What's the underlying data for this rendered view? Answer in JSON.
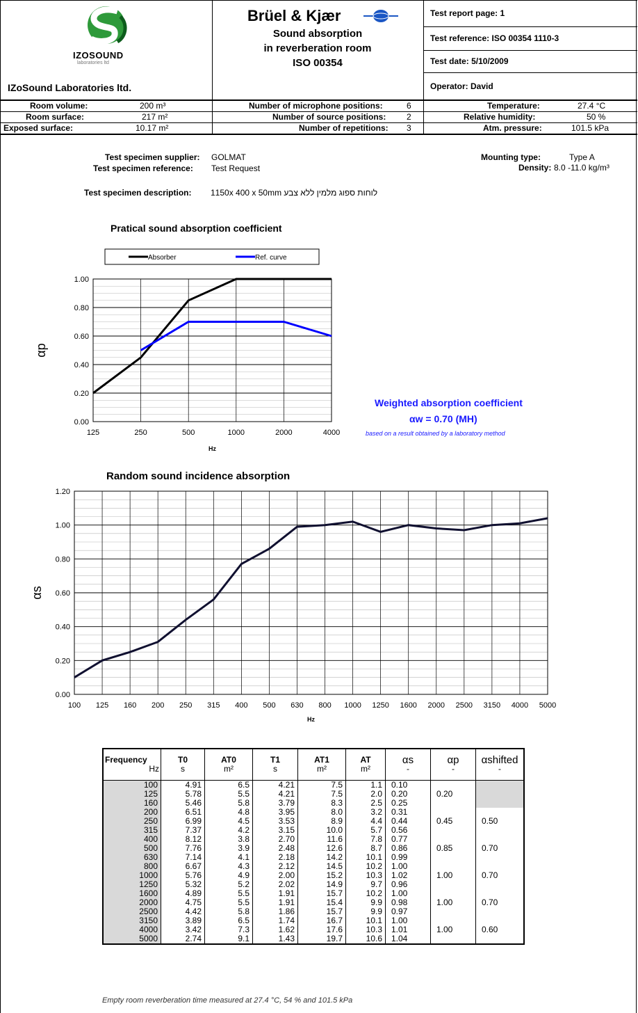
{
  "header": {
    "lab_logo_line1": "IZOSOUND",
    "lab_logo_line2": "laboratories ltd",
    "lab_name": "IZoSound Laboratories ltd.",
    "brand": "Brüel & Kjær",
    "title_line1": "Sound absorption",
    "title_line2": "in reverberation room",
    "title_line3": "ISO 00354",
    "report_page": "Test report page: 1",
    "test_reference": "Test reference: ISO 00354 1110-3",
    "test_date": "Test date: 5/10/2009",
    "operator": "Operator: David"
  },
  "room": {
    "volume_label": "Room volume:",
    "volume_value": "200 m³",
    "surface_label": "Room surface:",
    "surface_value": "217 m²",
    "exposed_label": "Exposed surface:",
    "exposed_value": "10.17 m²",
    "mic_label": "Number of microphone positions:",
    "mic_value": "6",
    "src_label": "Number of source positions:",
    "src_value": "2",
    "rep_label": "Number of repetitions:",
    "rep_value": "3",
    "temp_label": "Temperature:",
    "temp_value": "27.4 °C",
    "hum_label": "Relative humidity:",
    "hum_value": "50 %",
    "press_label": "Atm. pressure:",
    "press_value": "101.5 kPa"
  },
  "specimen": {
    "supplier_label": "Test specimen supplier:",
    "supplier_value": "GOLMAT",
    "reference_label": "Test specimen reference:",
    "reference_value": "Test Request",
    "mounting_label": "Mounting type:",
    "mounting_value": "Type A",
    "density_label": "Density:",
    "density_value": "8.0 -11.0   kg/m³",
    "description_label": "Test specimen description:",
    "description_value": "לוחות ספוג מלמין ללא צבע 1150x 400 x 50mm"
  },
  "weighted": {
    "title": "Weighted absorption coefficient",
    "value_line": "αw  =   0.70   (MH)",
    "note": "based on a result obtained by a laboratory method"
  },
  "chart_data": [
    {
      "type": "line",
      "title": "Pratical sound absorption coefficient",
      "xlabel": "Hz",
      "ylabel": "αp",
      "categories": [
        "125",
        "250",
        "500",
        "1000",
        "2000",
        "4000"
      ],
      "ylim": [
        0,
        1.0
      ],
      "yticks": [
        "0.00",
        "0.20",
        "0.40",
        "0.60",
        "0.80",
        "1.00"
      ],
      "grid": true,
      "legend_position": "top",
      "series": [
        {
          "name": "Absorber",
          "color": "#000000",
          "values": [
            0.2,
            0.45,
            0.85,
            1.0,
            1.0,
            1.0
          ]
        },
        {
          "name": "Ref. curve",
          "color": "#0000ff",
          "values": [
            null,
            0.5,
            0.7,
            0.7,
            0.7,
            0.6
          ]
        }
      ]
    },
    {
      "type": "line",
      "title": "Random sound incidence absorption",
      "xlabel": "Hz",
      "ylabel": "αs",
      "categories": [
        "100",
        "125",
        "160",
        "200",
        "250",
        "315",
        "400",
        "500",
        "630",
        "800",
        "1000",
        "1250",
        "1600",
        "2000",
        "2500",
        "3150",
        "4000",
        "5000"
      ],
      "ylim": [
        0,
        1.2
      ],
      "yticks": [
        "0.00",
        "0.20",
        "0.40",
        "0.60",
        "0.80",
        "1.00",
        "1.20"
      ],
      "grid": true,
      "series": [
        {
          "color": "#101030",
          "values": [
            0.1,
            0.2,
            0.25,
            0.31,
            0.44,
            0.56,
            0.77,
            0.86,
            0.99,
            1.0,
            1.02,
            0.96,
            1.0,
            0.98,
            0.97,
            1.0,
            1.01,
            1.04
          ]
        }
      ]
    }
  ],
  "table": {
    "headers": [
      {
        "top": "Frequency",
        "unit": "Hz"
      },
      {
        "top": "T0",
        "unit": "s"
      },
      {
        "top": "AT0",
        "unit": "m²"
      },
      {
        "top": "T1",
        "unit": "s"
      },
      {
        "top": "AT1",
        "unit": "m²"
      },
      {
        "top": "AT",
        "unit": "m²"
      },
      {
        "top": "αs",
        "unit": "-"
      },
      {
        "top": "αp",
        "unit": "-"
      },
      {
        "top": "αshifted",
        "unit": "-"
      }
    ],
    "rows": [
      [
        "100",
        "4.91",
        "6.5",
        "4.21",
        "7.5",
        "1.1",
        "0.10",
        "",
        ""
      ],
      [
        "125",
        "5.78",
        "5.5",
        "4.21",
        "7.5",
        "2.0",
        "0.20",
        "0.20",
        ""
      ],
      [
        "160",
        "5.46",
        "5.8",
        "3.79",
        "8.3",
        "2.5",
        "0.25",
        "",
        ""
      ],
      [
        "200",
        "6.51",
        "4.8",
        "3.95",
        "8.0",
        "3.2",
        "0.31",
        "",
        ""
      ],
      [
        "250",
        "6.99",
        "4.5",
        "3.53",
        "8.9",
        "4.4",
        "0.44",
        "0.45",
        "0.50"
      ],
      [
        "315",
        "7.37",
        "4.2",
        "3.15",
        "10.0",
        "5.7",
        "0.56",
        "",
        ""
      ],
      [
        "400",
        "8.12",
        "3.8",
        "2.70",
        "11.6",
        "7.8",
        "0.77",
        "",
        ""
      ],
      [
        "500",
        "7.76",
        "3.9",
        "2.48",
        "12.6",
        "8.7",
        "0.86",
        "0.85",
        "0.70"
      ],
      [
        "630",
        "7.14",
        "4.1",
        "2.18",
        "14.2",
        "10.1",
        "0.99",
        "",
        ""
      ],
      [
        "800",
        "6.67",
        "4.3",
        "2.12",
        "14.5",
        "10.2",
        "1.00",
        "",
        ""
      ],
      [
        "1000",
        "5.76",
        "4.9",
        "2.00",
        "15.2",
        "10.3",
        "1.02",
        "1.00",
        "0.70"
      ],
      [
        "1250",
        "5.32",
        "5.2",
        "2.02",
        "14.9",
        "9.7",
        "0.96",
        "",
        ""
      ],
      [
        "1600",
        "4.89",
        "5.5",
        "1.91",
        "15.7",
        "10.2",
        "1.00",
        "",
        ""
      ],
      [
        "2000",
        "4.75",
        "5.5",
        "1.91",
        "15.4",
        "9.9",
        "0.98",
        "1.00",
        "0.70"
      ],
      [
        "2500",
        "4.42",
        "5.8",
        "1.86",
        "15.7",
        "9.9",
        "0.97",
        "",
        ""
      ],
      [
        "3150",
        "3.89",
        "6.5",
        "1.74",
        "16.7",
        "10.1",
        "1.00",
        "",
        ""
      ],
      [
        "4000",
        "3.42",
        "7.3",
        "1.62",
        "17.6",
        "10.3",
        "1.01",
        "1.00",
        "0.60"
      ],
      [
        "5000",
        "2.74",
        "9.1",
        "1.43",
        "19.7",
        "10.6",
        "1.04",
        "",
        ""
      ]
    ]
  },
  "footnote": "Empty room reverberation time measured at 27.4 °C, 54 % and 101.5 kPa"
}
